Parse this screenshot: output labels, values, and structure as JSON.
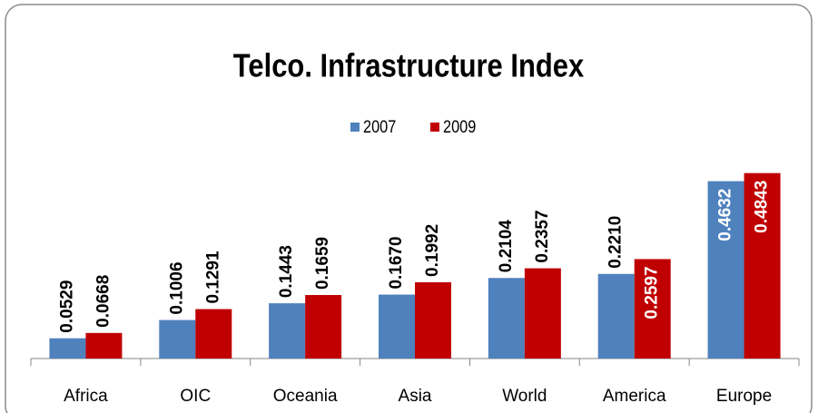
{
  "chart_data": {
    "type": "bar",
    "title": "Telco. Infrastructure Index",
    "categories": [
      "Africa",
      "OIC",
      "Oceania",
      "Asia",
      "World",
      "America",
      "Europe"
    ],
    "series": [
      {
        "name": "2007",
        "color": "#4f81bd",
        "values": [
          0.0529,
          0.1006,
          0.1443,
          0.167,
          0.2104,
          0.221,
          0.4632
        ],
        "value_labels": [
          "0.0529",
          "0.1006",
          "0.1443",
          "0.1670",
          "0.2104",
          "0.2210",
          "0.4632"
        ]
      },
      {
        "name": "2009",
        "color": "#c00000",
        "values": [
          0.0668,
          0.1291,
          0.1659,
          0.1992,
          0.2357,
          0.2597,
          0.4843
        ],
        "value_labels": [
          "0.0668",
          "0.1291",
          "0.1659",
          "0.1992",
          "0.2357",
          "0.2597",
          "0.4843"
        ]
      }
    ],
    "ylim": [
      0,
      0.55
    ],
    "legend": "top"
  }
}
